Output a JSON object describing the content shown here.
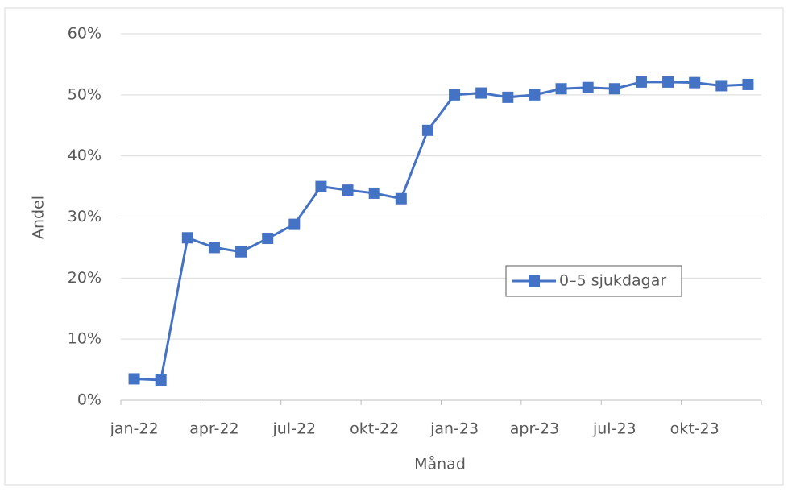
{
  "chart_data": {
    "type": "line",
    "x_label": "Månad",
    "y_label": "Andel",
    "categories": [
      "jan-22",
      null,
      null,
      "apr-22",
      null,
      null,
      "jul-22",
      null,
      null,
      "okt-22",
      null,
      null,
      "jan-23",
      null,
      null,
      "apr-23",
      null,
      null,
      "jul-23",
      null,
      null,
      "okt-23",
      null,
      null
    ],
    "series": [
      {
        "name": "0–5 sjukdagar",
        "color": "#4472c4",
        "values": [
          3.5,
          3.3,
          26.6,
          25.0,
          24.3,
          26.5,
          28.8,
          35.0,
          34.4,
          33.9,
          33.0,
          44.2,
          50.0,
          50.3,
          49.6,
          50.0,
          51.0,
          51.2,
          51.0,
          52.1,
          52.1,
          52.0,
          51.5,
          51.7
        ]
      }
    ],
    "ylim": [
      0,
      60
    ],
    "yticks": [
      {
        "value": 0,
        "label": "0%"
      },
      {
        "value": 10,
        "label": "10%"
      },
      {
        "value": 20,
        "label": "20%"
      },
      {
        "value": 30,
        "label": "30%"
      },
      {
        "value": 40,
        "label": "40%"
      },
      {
        "value": 50,
        "label": "50%"
      },
      {
        "value": 60,
        "label": "60%"
      }
    ],
    "grid": true,
    "legend": "right"
  }
}
